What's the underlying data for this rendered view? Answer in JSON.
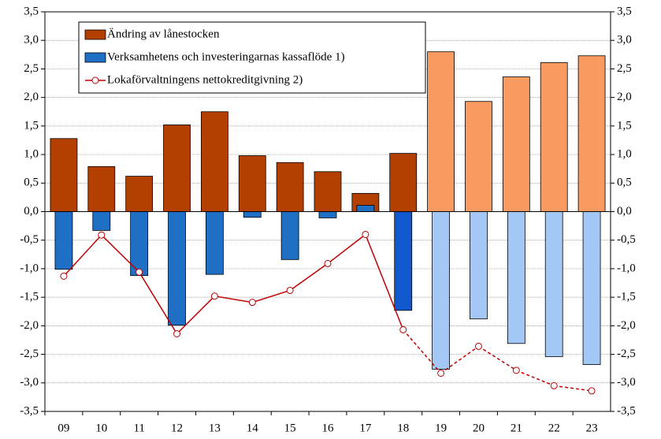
{
  "chart_data": {
    "type": "bar",
    "categories": [
      "09",
      "10",
      "11",
      "12",
      "13",
      "14",
      "15",
      "16",
      "17",
      "18",
      "19",
      "20",
      "21",
      "22",
      "23"
    ],
    "series": [
      {
        "name": "Ändring av lånestocken",
        "type": "bar",
        "color": "#b34000",
        "colors": [
          "#b34000",
          "#b34000",
          "#b34000",
          "#b34000",
          "#b34000",
          "#b34000",
          "#b34000",
          "#b34000",
          "#b34000",
          "#b34000",
          "#f99a60",
          "#f99a60",
          "#f99a60",
          "#f99a60",
          "#f99a60"
        ],
        "values": [
          1.28,
          0.79,
          0.62,
          1.52,
          1.75,
          0.98,
          0.86,
          0.7,
          0.32,
          1.02,
          2.8,
          1.93,
          2.36,
          2.61,
          2.73
        ]
      },
      {
        "name": "Verksamhetens och investeringarnas kassaflöde 1)",
        "type": "bar",
        "color": "#1f6fc4",
        "colors": [
          "#1f6fc4",
          "#1f6fc4",
          "#1f6fc4",
          "#1f6fc4",
          "#1f6fc4",
          "#1f6fc4",
          "#1f6fc4",
          "#1f6fc4",
          "#1f6fc4",
          "#1158cf",
          "#a3c8f5",
          "#a3c8f5",
          "#a3c8f5",
          "#a3c8f5",
          "#a3c8f5"
        ],
        "values": [
          -1.01,
          -0.33,
          -1.12,
          -1.99,
          -1.1,
          -0.1,
          -0.84,
          -0.11,
          0.11,
          -1.73,
          -2.76,
          -1.88,
          -2.31,
          -2.54,
          -2.68
        ]
      },
      {
        "name": "Lokaförvaltningens nettokreditgivning 2)",
        "type": "line",
        "color": "#c00000",
        "linestyles": [
          "solid",
          "solid",
          "solid",
          "solid",
          "solid",
          "solid",
          "solid",
          "solid",
          "solid",
          "solid",
          "dashed",
          "dashed",
          "dashed",
          "dashed",
          "dashed"
        ],
        "values": [
          -1.13,
          -0.41,
          -1.06,
          -2.14,
          -1.48,
          -1.59,
          -1.38,
          -0.91,
          -0.4,
          -2.07,
          -2.83,
          -2.36,
          -2.78,
          -3.05,
          -3.14
        ]
      }
    ],
    "ylim": [
      -3.5,
      3.5
    ],
    "yticks": [
      {
        "value": -3.5,
        "label": "-3,5"
      },
      {
        "value": -3,
        "label": "-3,0"
      },
      {
        "value": -2.5,
        "label": "-2,5"
      },
      {
        "value": -2,
        "label": "-2,0"
      },
      {
        "value": -1.5,
        "label": "-1,5"
      },
      {
        "value": -1,
        "label": "-1,0"
      },
      {
        "value": -0.5,
        "label": "-0,5"
      },
      {
        "value": 0,
        "label": "0,0"
      },
      {
        "value": 0.5,
        "label": "0,5"
      },
      {
        "value": 1,
        "label": "1,0"
      },
      {
        "value": 1.5,
        "label": "1,5"
      },
      {
        "value": 2,
        "label": "2,0"
      },
      {
        "value": 2.5,
        "label": "2,5"
      },
      {
        "value": 3,
        "label": "3,0"
      },
      {
        "value": 3.5,
        "label": "3,5"
      }
    ],
    "grid": true,
    "right_axis": true,
    "legend": "upper left"
  }
}
